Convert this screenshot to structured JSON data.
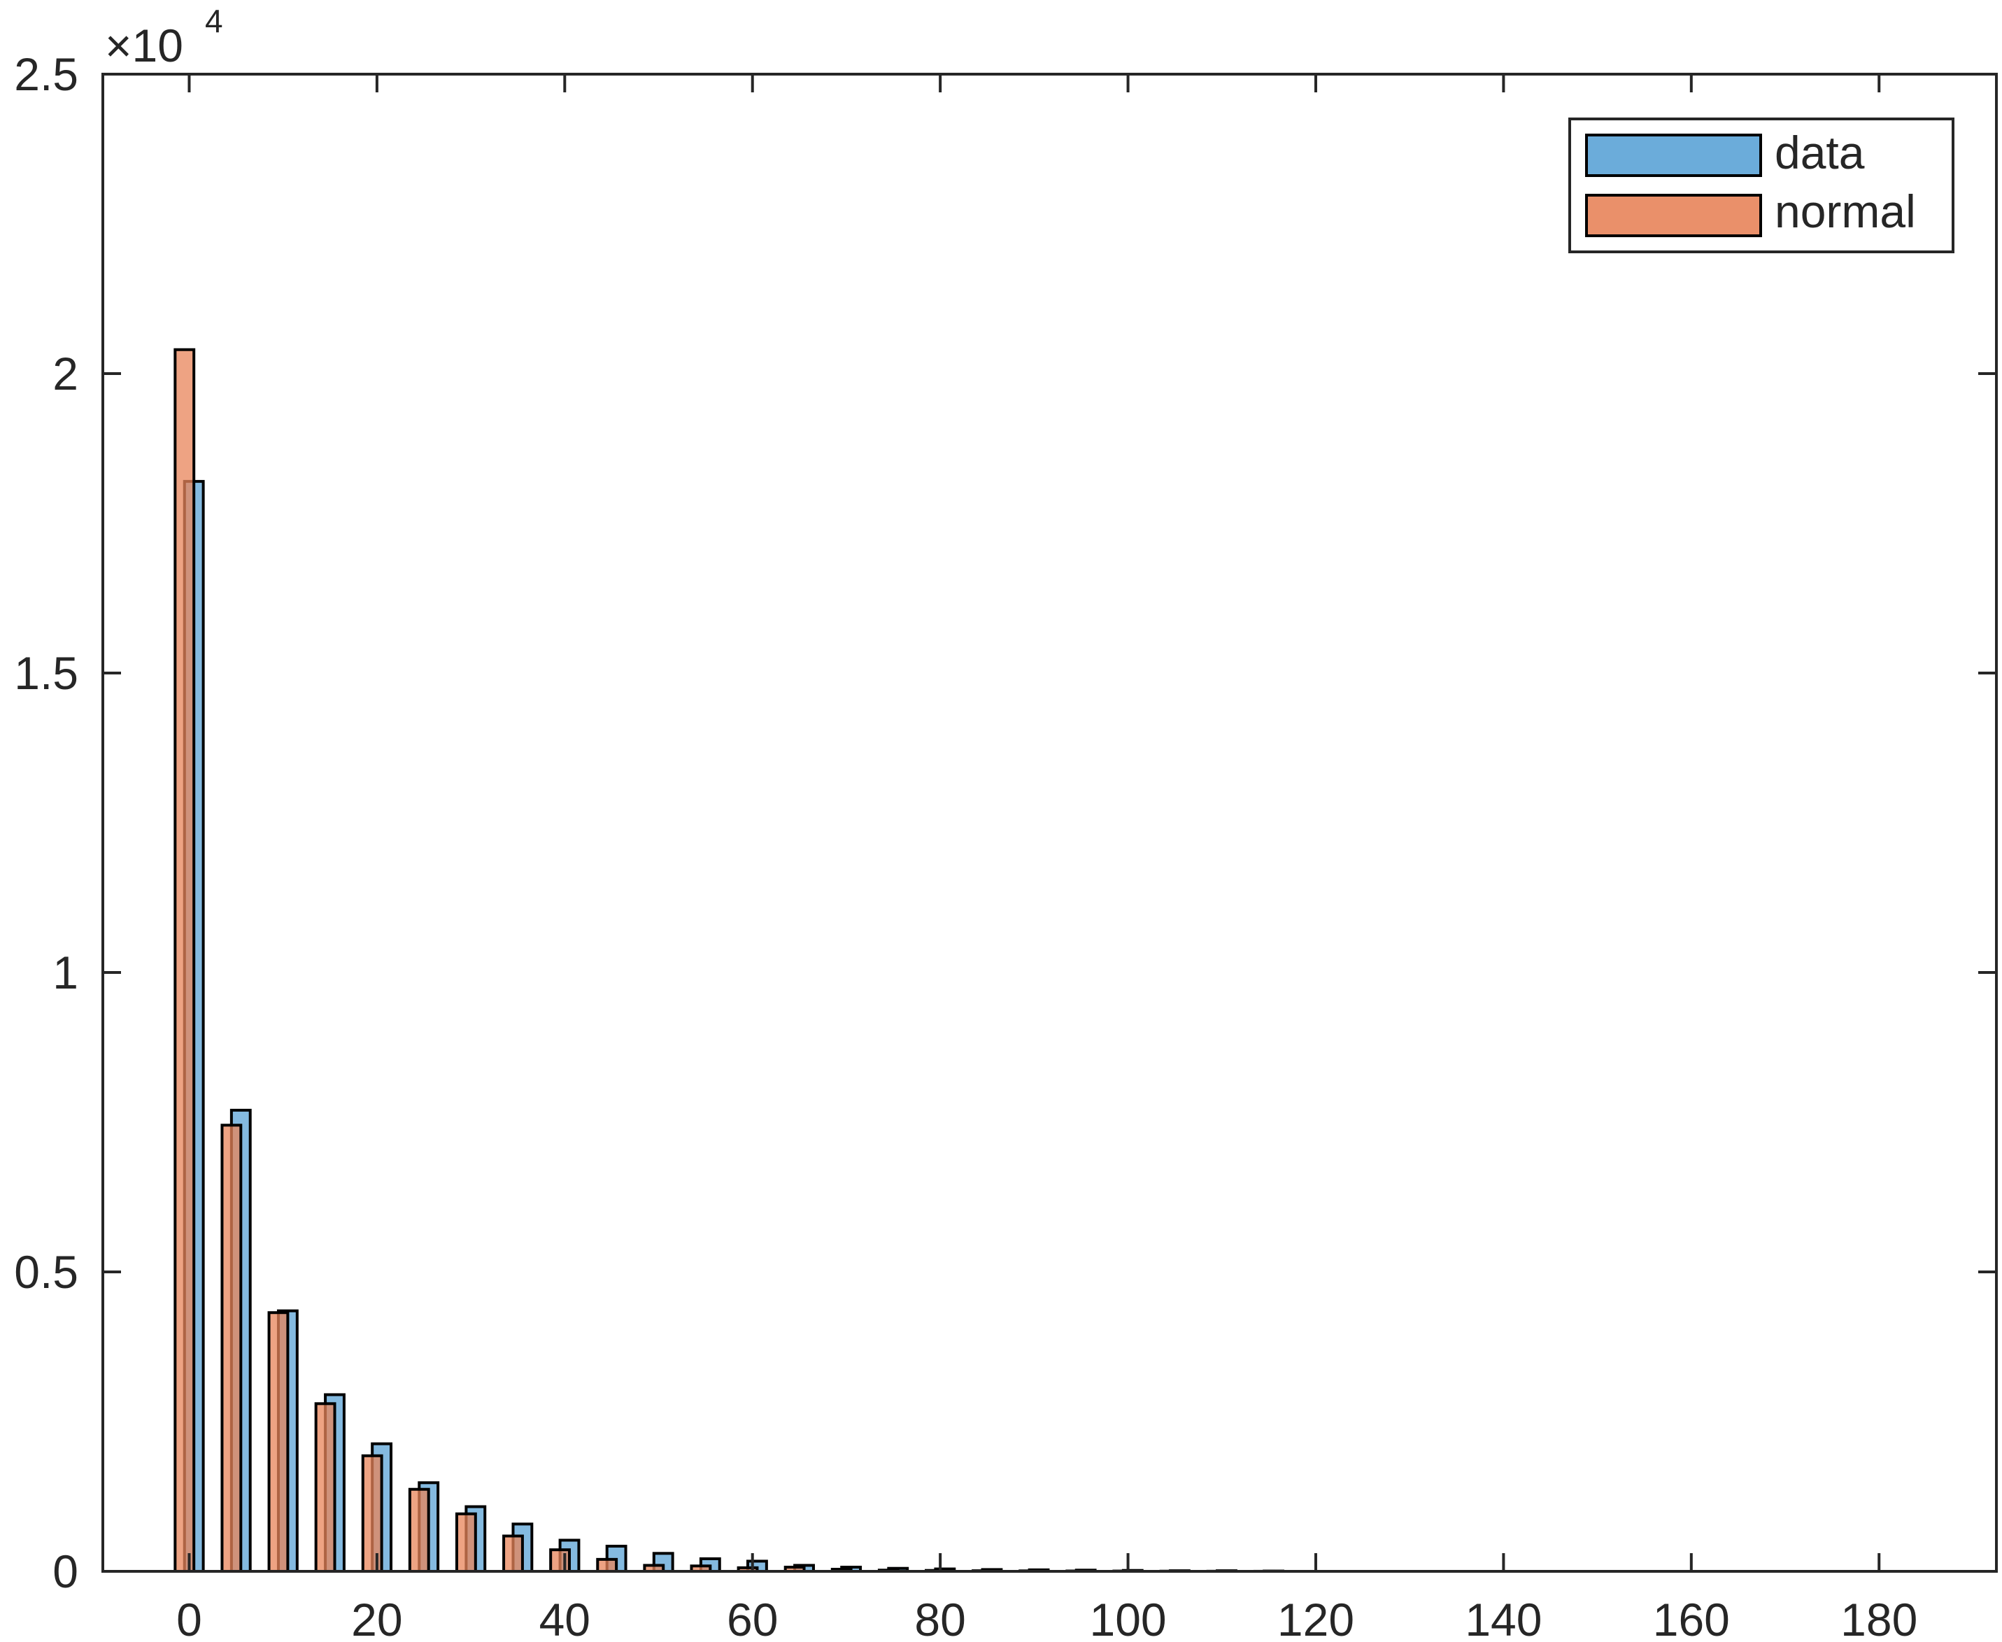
{
  "chart_data": {
    "type": "bar",
    "exponent_label": "×10",
    "exponent_power": "4",
    "x_ticks": [
      "0",
      "20",
      "40",
      "60",
      "80",
      "100",
      "120",
      "140",
      "160",
      "180"
    ],
    "y_ticks": [
      "0",
      "0.5",
      "1",
      "1.5",
      "2",
      "2.5"
    ],
    "xlim": [
      -9.2,
      192.5
    ],
    "ylim": [
      0,
      25000
    ],
    "grid": false,
    "legend_position": "top-right",
    "series": [
      {
        "name": "data",
        "color": "#5ba3d6",
        "x": [
          0,
          5,
          10,
          15,
          20,
          25,
          30,
          35,
          40,
          45,
          50,
          55,
          60,
          65,
          70,
          75,
          80,
          85,
          90,
          95,
          100,
          105,
          110,
          115
        ],
        "values": [
          18200,
          7700,
          4350,
          2950,
          2130,
          1480,
          1080,
          790,
          520,
          420,
          300,
          210,
          170,
          100,
          70,
          50,
          40,
          30,
          25,
          20,
          15,
          10,
          10,
          5
        ]
      },
      {
        "name": "normal",
        "color": "#e8845a",
        "x": [
          0,
          5,
          10,
          15,
          20,
          25,
          30,
          35,
          40,
          45,
          50,
          55,
          60,
          65,
          70,
          75,
          80,
          85,
          90,
          95,
          100,
          105,
          110,
          115
        ],
        "values": [
          20400,
          7450,
          4320,
          2800,
          1930,
          1370,
          960,
          590,
          360,
          200,
          100,
          90,
          60,
          70,
          35,
          20,
          15,
          10,
          8,
          6,
          5,
          3,
          2,
          1
        ]
      }
    ]
  }
}
